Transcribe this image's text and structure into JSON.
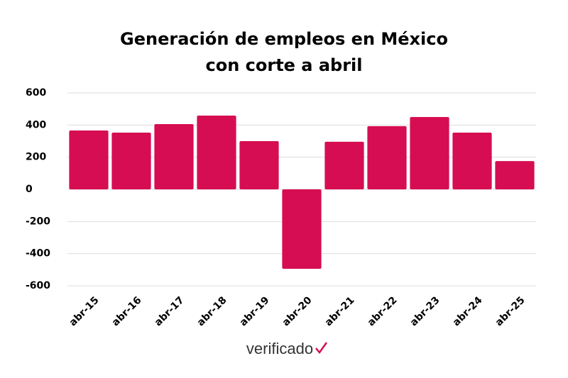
{
  "chart_data": {
    "type": "bar",
    "title": [
      "Generación de empleos en México",
      "con corte a abril"
    ],
    "categories": [
      "abr-15",
      "abr-16",
      "abr-17",
      "abr-18",
      "abr-19",
      "abr-20",
      "abr-21",
      "abr-22",
      "abr-23",
      "abr-24",
      "abr-25"
    ],
    "values": [
      366,
      353,
      406,
      459,
      300,
      -494,
      296,
      393,
      450,
      353,
      176
    ],
    "color": "#d60d52",
    "ylim": [
      -600,
      600
    ],
    "yticks": [
      600,
      400,
      200,
      0,
      -200,
      -400,
      -600
    ],
    "grid": true,
    "source": "verificado"
  }
}
